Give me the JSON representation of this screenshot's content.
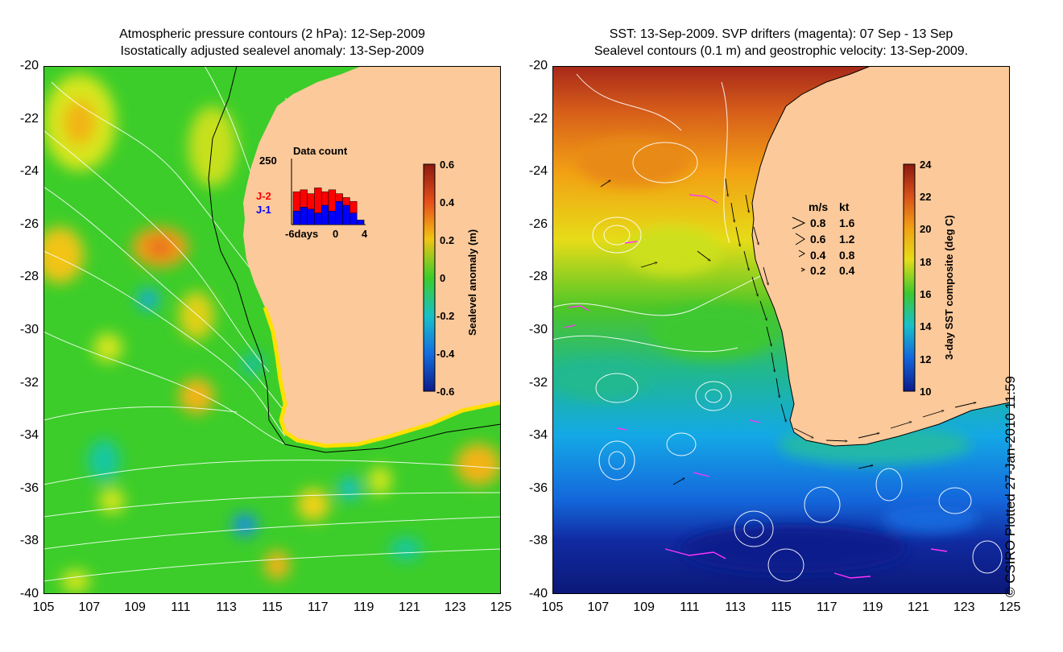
{
  "left_panel": {
    "title_line1": "Atmospheric pressure contours (2 hPa): 12-Sep-2009",
    "title_line2": "Isostatically adjusted sealevel anomaly: 13-Sep-2009",
    "inset": {
      "title": "Data count",
      "y_max": "250",
      "x_min_label": "-6days",
      "x_mid_label": "0",
      "x_max_label": "4",
      "label_j2": "J-2",
      "label_j1": "J-1",
      "j2_color": "#ff0000",
      "j1_color": "#0000ff"
    },
    "colorbar": {
      "label": "Sealevel anomaly (m)",
      "ticks": [
        "0.6",
        "0.4",
        "0.2",
        "0",
        "-0.2",
        "-0.4",
        "-0.6"
      ]
    }
  },
  "right_panel": {
    "title_line1": "SST: 13-Sep-2009. SVP drifters (magenta): 07 Sep - 13 Sep",
    "title_line2": "Sealevel contours (0.1 m) and geostrophic velocity: 13-Sep-2009.",
    "legend": {
      "header_ms": "m/s",
      "header_kt": "kt",
      "rows": [
        {
          "ms": "0.8",
          "kt": "1.6"
        },
        {
          "ms": "0.6",
          "kt": "1.2"
        },
        {
          "ms": "0.4",
          "kt": "0.8"
        },
        {
          "ms": "0.2",
          "kt": "0.4"
        }
      ]
    },
    "colorbar": {
      "label": "3-day SST composite (deg C)",
      "ticks": [
        "24",
        "22",
        "20",
        "18",
        "16",
        "14",
        "12",
        "10"
      ]
    }
  },
  "axes": {
    "y_ticks": [
      "-20",
      "-22",
      "-24",
      "-26",
      "-28",
      "-30",
      "-32",
      "-34",
      "-36",
      "-38",
      "-40"
    ],
    "x_ticks": [
      "105",
      "107",
      "109",
      "111",
      "113",
      "115",
      "117",
      "119",
      "121",
      "123",
      "125"
    ]
  },
  "credit": "© CSIRO Plotted 27-Jan-2010 11:59",
  "colors": {
    "land": "#fcc99a",
    "ocean_green": "#22c232",
    "drifter": "#ff33ff"
  }
}
